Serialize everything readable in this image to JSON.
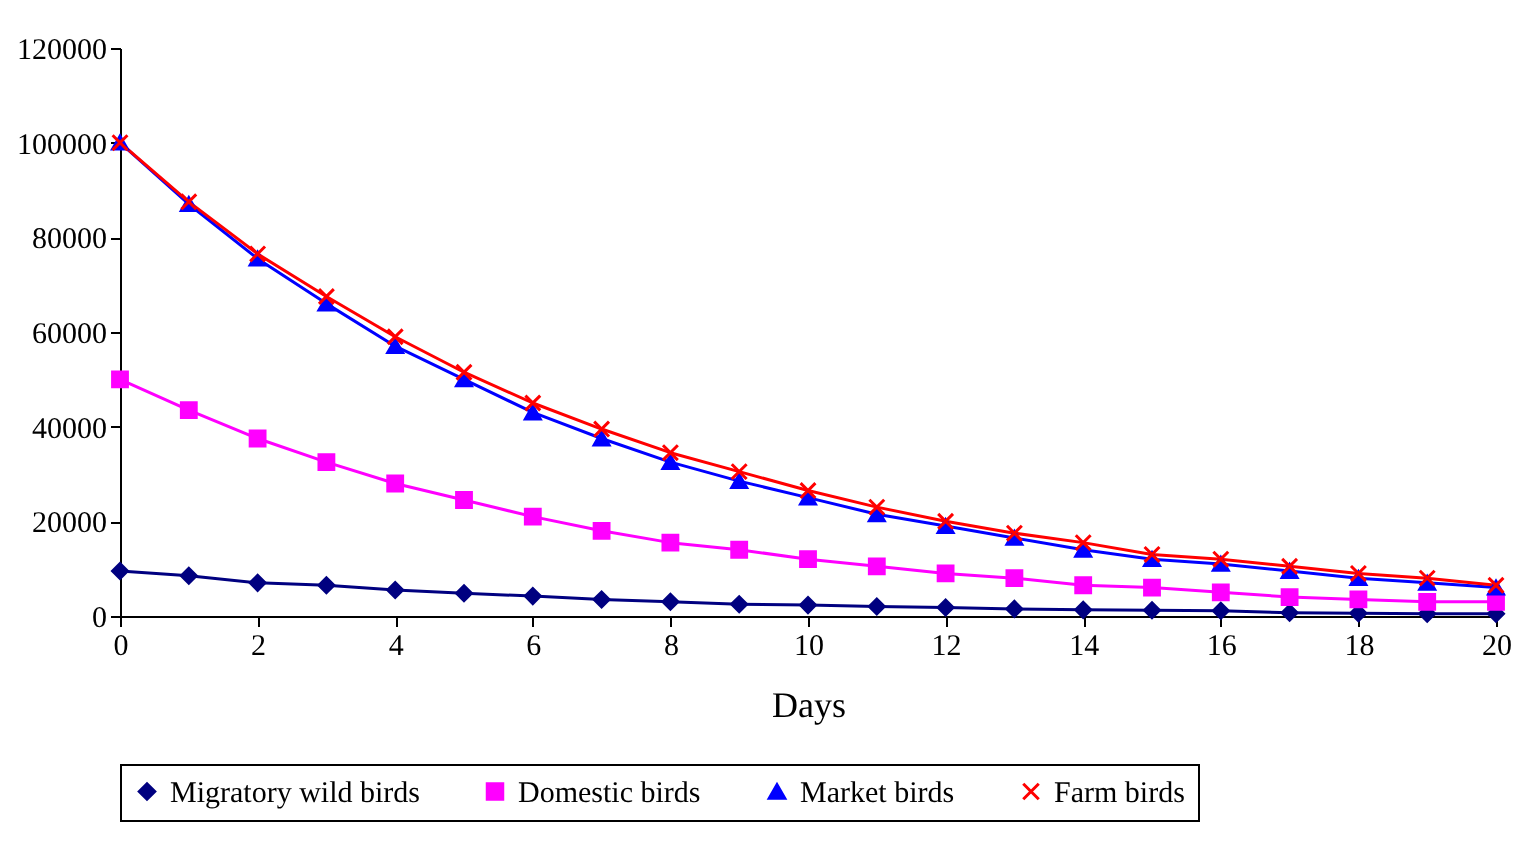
{
  "chart_data": {
    "type": "line",
    "xlabel": "Days",
    "x": [
      0,
      1,
      2,
      3,
      4,
      5,
      6,
      7,
      8,
      9,
      10,
      11,
      12,
      13,
      14,
      15,
      16,
      17,
      18,
      19,
      20
    ],
    "xlim": [
      0,
      20
    ],
    "xticks": [
      0,
      2,
      4,
      6,
      8,
      10,
      12,
      14,
      16,
      18,
      20
    ],
    "ylim": [
      0,
      120000
    ],
    "yticks": [
      0,
      20000,
      40000,
      60000,
      80000,
      100000,
      120000
    ],
    "grid": false,
    "legend": "bottom",
    "line_style": "solid",
    "series": [
      {
        "name": "Migratory wild birds",
        "color": "#000080",
        "marker": "diamond",
        "values": [
          9500,
          8500,
          7000,
          6500,
          5500,
          4800,
          4200,
          3500,
          3000,
          2500,
          2300,
          2000,
          1800,
          1500,
          1300,
          1200,
          1100,
          700,
          600,
          500,
          500
        ]
      },
      {
        "name": "Domestic birds",
        "color": "#ff00ff",
        "marker": "square",
        "values": [
          50000,
          43500,
          37500,
          32500,
          28000,
          24500,
          21000,
          18000,
          15500,
          14000,
          12000,
          10500,
          9000,
          8000,
          6500,
          6000,
          5000,
          4000,
          3500,
          3000,
          3000
        ]
      },
      {
        "name": "Market birds",
        "color": "#0000ff",
        "marker": "triangle",
        "values": [
          100000,
          87000,
          75500,
          66000,
          57000,
          50000,
          43000,
          37500,
          32500,
          28500,
          25000,
          21500,
          19000,
          16500,
          14000,
          12000,
          11000,
          9500,
          8000,
          7000,
          6000
        ]
      },
      {
        "name": "Farm birds",
        "color": "#ff0000",
        "marker": "cross",
        "values": [
          100000,
          87500,
          76500,
          67500,
          59000,
          51500,
          45000,
          39500,
          34500,
          30500,
          26500,
          23000,
          20000,
          17500,
          15500,
          13000,
          12000,
          10500,
          9000,
          8000,
          6500
        ]
      }
    ]
  }
}
